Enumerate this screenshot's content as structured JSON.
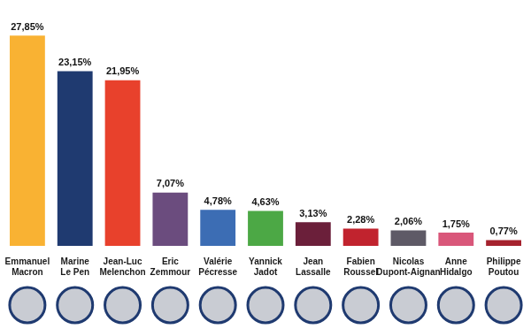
{
  "chart_data": {
    "type": "bar",
    "categories": [
      "Emmanuel Macron",
      "Marine Le Pen",
      "Jean-Luc Melenchon",
      "Eric Zemmour",
      "Valérie Pécresse",
      "Yannick Jadot",
      "Jean Lassalle",
      "Fabien Roussel",
      "Nicolas Dupont-Aignan",
      "Anne Hidalgo",
      "Philippe Poutou"
    ],
    "values": [
      27.85,
      23.15,
      21.95,
      7.07,
      4.78,
      4.63,
      3.13,
      2.28,
      2.06,
      1.75,
      0.77
    ],
    "value_labels": [
      "27,85%",
      "23,15%",
      "21,95%",
      "7,07%",
      "4,78%",
      "4,63%",
      "3,13%",
      "2,28%",
      "2,06%",
      "1,75%",
      "0,77%"
    ],
    "colors": [
      "#f9b233",
      "#1f3a70",
      "#e8412c",
      "#6b4c7e",
      "#3c6db4",
      "#4ca845",
      "#6b1f3a",
      "#c1232e",
      "#5e5a66",
      "#d9577a",
      "#a5222e"
    ],
    "ylim": [
      0,
      30
    ],
    "data_labels": true,
    "grid": false,
    "tick_labels": "x"
  }
}
